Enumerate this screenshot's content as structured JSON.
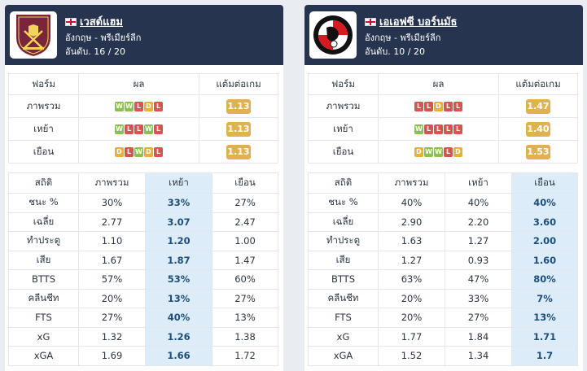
{
  "colors": {
    "W": "#8cc152",
    "D": "#e5b13a",
    "L": "#d9534f",
    "ppg_bg": "#e0b14f",
    "header_bg": "#26344f",
    "highlight": "#dcecf8"
  },
  "left": {
    "team": "เวสต์แฮม",
    "country_league": "อังกฤษ - พรีเมียร์ลีก",
    "rank": "อันดับ. 16 / 20",
    "logo_icon": "west-ham-crest-icon",
    "form_headers": [
      "ฟอร์ม",
      "ผล",
      "แต้มต่อเกม"
    ],
    "form_rows": [
      {
        "label": "ภาพรวม",
        "results": [
          "W",
          "W",
          "L",
          "D",
          "L"
        ],
        "ppg": "1.13"
      },
      {
        "label": "เหย้า",
        "results": [
          "W",
          "L",
          "L",
          "W",
          "L"
        ],
        "ppg": "1.13"
      },
      {
        "label": "เยือน",
        "results": [
          "D",
          "L",
          "W",
          "D",
          "L"
        ],
        "ppg": "1.13"
      }
    ],
    "stat_headers": [
      "สถิติ",
      "ภาพรวม",
      "เหย้า",
      "เยือน"
    ],
    "stat_rows": [
      {
        "label": "ชนะ %",
        "overall": "30%",
        "home": "33%",
        "away": "27%"
      },
      {
        "label": "เฉลี่ย",
        "overall": "2.77",
        "home": "3.07",
        "away": "2.47"
      },
      {
        "label": "ทำประตู",
        "overall": "1.10",
        "home": "1.20",
        "away": "1.00"
      },
      {
        "label": "เสีย",
        "overall": "1.67",
        "home": "1.87",
        "away": "1.47"
      },
      {
        "label": "BTTS",
        "overall": "57%",
        "home": "53%",
        "away": "60%"
      },
      {
        "label": "คลีนชีท",
        "overall": "20%",
        "home": "13%",
        "away": "27%"
      },
      {
        "label": "FTS",
        "overall": "27%",
        "home": "40%",
        "away": "13%"
      },
      {
        "label": "xG",
        "overall": "1.32",
        "home": "1.26",
        "away": "1.38"
      },
      {
        "label": "xGA",
        "overall": "1.69",
        "home": "1.66",
        "away": "1.72"
      }
    ]
  },
  "right": {
    "team": "เอเอฟซี บอร์นมัธ",
    "country_league": "อังกฤษ - พรีเมียร์ลีก",
    "rank": "อันดับ. 10 / 20",
    "logo_icon": "bournemouth-crest-icon",
    "form_headers": [
      "ฟอร์ม",
      "ผล",
      "แต้มต่อเกม"
    ],
    "form_rows": [
      {
        "label": "ภาพรวม",
        "results": [
          "L",
          "L",
          "D",
          "L",
          "L"
        ],
        "ppg": "1.47"
      },
      {
        "label": "เหย้า",
        "results": [
          "W",
          "L",
          "L",
          "L",
          "L"
        ],
        "ppg": "1.40"
      },
      {
        "label": "เยือน",
        "results": [
          "D",
          "W",
          "W",
          "L",
          "D"
        ],
        "ppg": "1.53"
      }
    ],
    "stat_headers": [
      "สถิติ",
      "ภาพรวม",
      "เหย้า",
      "เยือน"
    ],
    "stat_rows": [
      {
        "label": "ชนะ %",
        "overall": "40%",
        "home": "40%",
        "away": "40%"
      },
      {
        "label": "เฉลี่ย",
        "overall": "2.90",
        "home": "2.20",
        "away": "3.60"
      },
      {
        "label": "ทำประตู",
        "overall": "1.63",
        "home": "1.27",
        "away": "2.00"
      },
      {
        "label": "เสีย",
        "overall": "1.27",
        "home": "0.93",
        "away": "1.60"
      },
      {
        "label": "BTTS",
        "overall": "63%",
        "home": "47%",
        "away": "80%"
      },
      {
        "label": "คลีนชีท",
        "overall": "20%",
        "home": "33%",
        "away": "7%"
      },
      {
        "label": "FTS",
        "overall": "20%",
        "home": "27%",
        "away": "13%"
      },
      {
        "label": "xG",
        "overall": "1.77",
        "home": "1.84",
        "away": "1.71"
      },
      {
        "label": "xGA",
        "overall": "1.52",
        "home": "1.34",
        "away": "1.7"
      }
    ]
  }
}
